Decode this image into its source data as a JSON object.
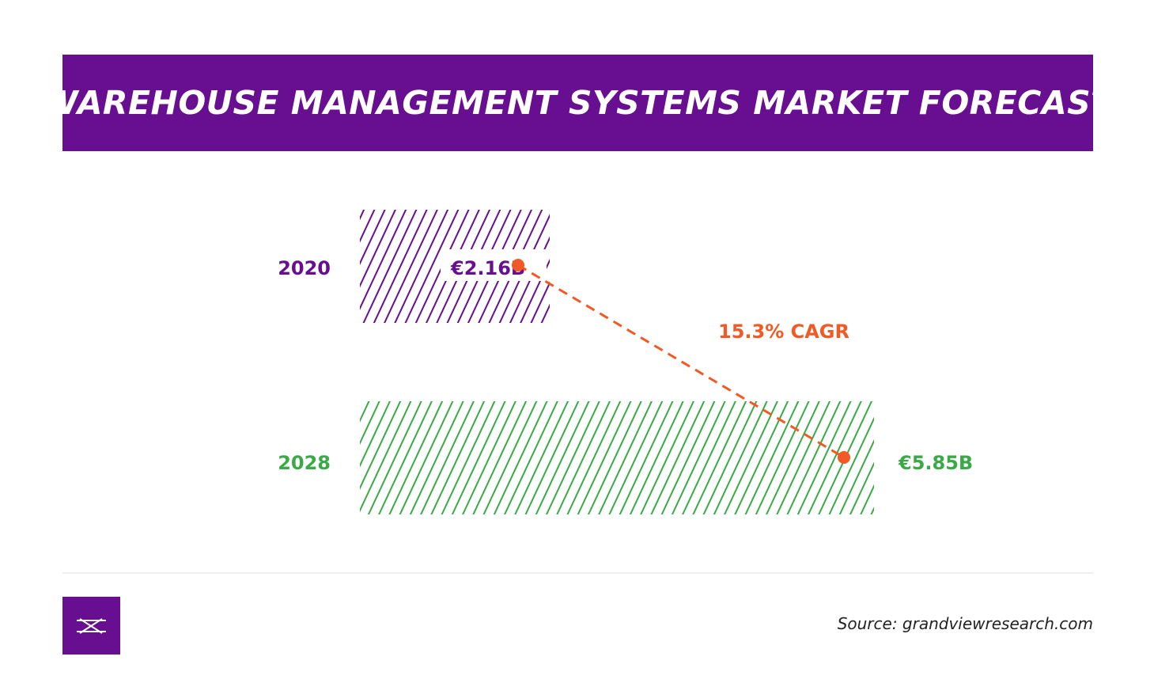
{
  "header": {
    "title": "WAREHOUSE MANAGEMENT SYSTEMS MARKET FORECAST"
  },
  "chart_data": {
    "type": "bar",
    "orientation": "horizontal",
    "categories": [
      "2020",
      "2028"
    ],
    "values": [
      2.16,
      5.85
    ],
    "value_labels": [
      "€2.16B",
      "€5.85B"
    ],
    "unit": "€ billions",
    "colors": [
      "#670e91",
      "#3aaa47"
    ],
    "annotation": {
      "text": "15.3% CAGR",
      "color": "#f15a24"
    }
  },
  "footer": {
    "source": "Source: grandviewresearch.com",
    "brand_color": "#670e91"
  }
}
